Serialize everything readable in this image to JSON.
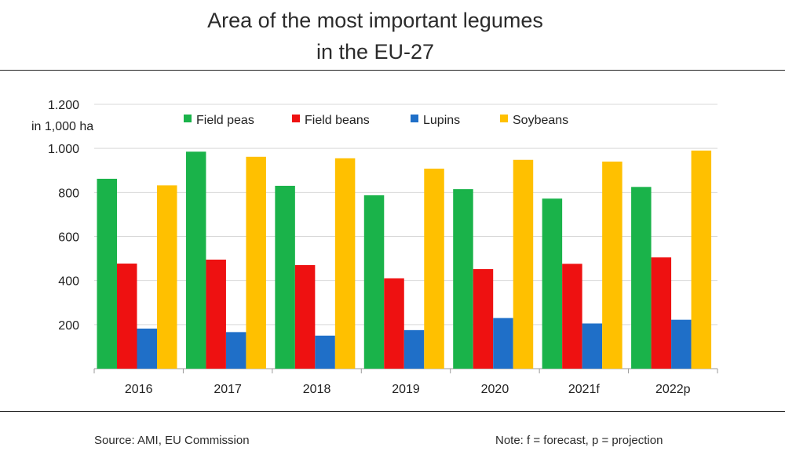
{
  "title_lines": [
    "Area of the most important legumes",
    "in the EU-27"
  ],
  "source": "Source: AMI, EU Commission",
  "note": "Note: f = forecast, p = projection",
  "chart_data": {
    "type": "bar",
    "title": "Area of the most important legumes in the EU-27",
    "ylabel": "in 1,000 ha",
    "xlabel": "",
    "categories": [
      "2016",
      "2017",
      "2018",
      "2019",
      "2020",
      "2021f",
      "2022p"
    ],
    "ylim": [
      0,
      1200
    ],
    "yticks": [
      200,
      400,
      600,
      800,
      1000,
      1200
    ],
    "ytick_labels": [
      "200",
      "400",
      "600",
      "800",
      "1.000",
      "1.200"
    ],
    "grid": true,
    "legend_position": "top",
    "series": [
      {
        "name": "Field peas",
        "color": "#1ab34a",
        "values": [
          862,
          985,
          830,
          787,
          815,
          772,
          825
        ]
      },
      {
        "name": "Field beans",
        "color": "#ee1111",
        "values": [
          477,
          495,
          470,
          410,
          452,
          476,
          505
        ]
      },
      {
        "name": "Lupins",
        "color": "#1f6fc8",
        "values": [
          182,
          166,
          150,
          175,
          230,
          205,
          222
        ]
      },
      {
        "name": "Soybeans",
        "color": "#ffc000",
        "values": [
          832,
          962,
          955,
          908,
          948,
          940,
          990
        ]
      }
    ]
  }
}
